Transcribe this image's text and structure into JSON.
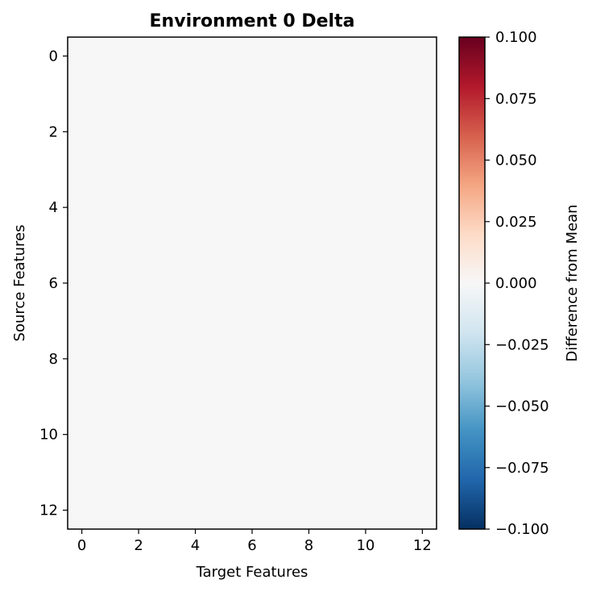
{
  "chart_data": {
    "type": "heatmap",
    "title": "Environment 0 Delta",
    "xlabel": "Target Features",
    "ylabel": "Source Features",
    "rows": 13,
    "cols": 13,
    "x_ticks": [
      "0",
      "2",
      "4",
      "6",
      "8",
      "10",
      "12"
    ],
    "y_ticks": [
      "0",
      "2",
      "4",
      "6",
      "8",
      "10",
      "12"
    ],
    "values_uniform": 0.0,
    "colorbar": {
      "label": "Difference from Mean",
      "min": -0.1,
      "max": 0.1,
      "ticks": [
        "0.100",
        "0.075",
        "0.050",
        "0.025",
        "0.000",
        "−0.025",
        "−0.050",
        "−0.075",
        "−0.100"
      ],
      "colormap": "RdBu_r",
      "stops": [
        "#053061",
        "#2166ac",
        "#4393c3",
        "#92c5de",
        "#d1e5f0",
        "#f7f7f7",
        "#fddbc7",
        "#f4a582",
        "#d6604d",
        "#b2182b",
        "#67001f"
      ]
    },
    "grid": false
  }
}
